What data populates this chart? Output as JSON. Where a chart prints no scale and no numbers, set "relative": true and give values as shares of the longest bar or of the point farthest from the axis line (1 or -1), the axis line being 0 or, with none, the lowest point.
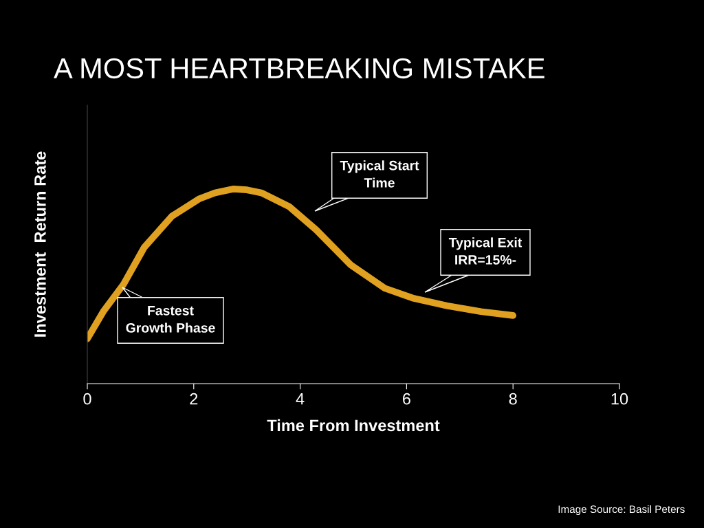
{
  "chart_data": {
    "type": "line",
    "title": "A MOST HEARTBREAKING MISTAKE",
    "xlabel": "Time From Investment",
    "ylabel": "Investment  Return Rate",
    "relative": true,
    "xlim": [
      0,
      10
    ],
    "xticks": [
      0,
      2,
      4,
      6,
      8,
      10
    ],
    "grid": false,
    "legend": false,
    "marker": "none",
    "line_style": "solid",
    "x": [
      0,
      0.3,
      0.68,
      1.07,
      1.59,
      2.11,
      2.4,
      2.75,
      3.0,
      3.27,
      3.79,
      4.3,
      4.95,
      5.59,
      6.11,
      6.76,
      7.4,
      8.0
    ],
    "series": [
      {
        "color": "#e0a020",
        "values": [
          0.23,
          0.37,
          0.51,
          0.7,
          0.86,
          0.95,
          0.98,
          1.0,
          0.995,
          0.98,
          0.91,
          0.79,
          0.61,
          0.49,
          0.44,
          0.4,
          0.37,
          0.35
        ]
      }
    ],
    "annotations": [
      "Typical Start\nTime",
      "Typical Exit\nIRR=15%-",
      "Fastest\nGrowth Phase",
      "Image Source: Basil Peters"
    ]
  }
}
